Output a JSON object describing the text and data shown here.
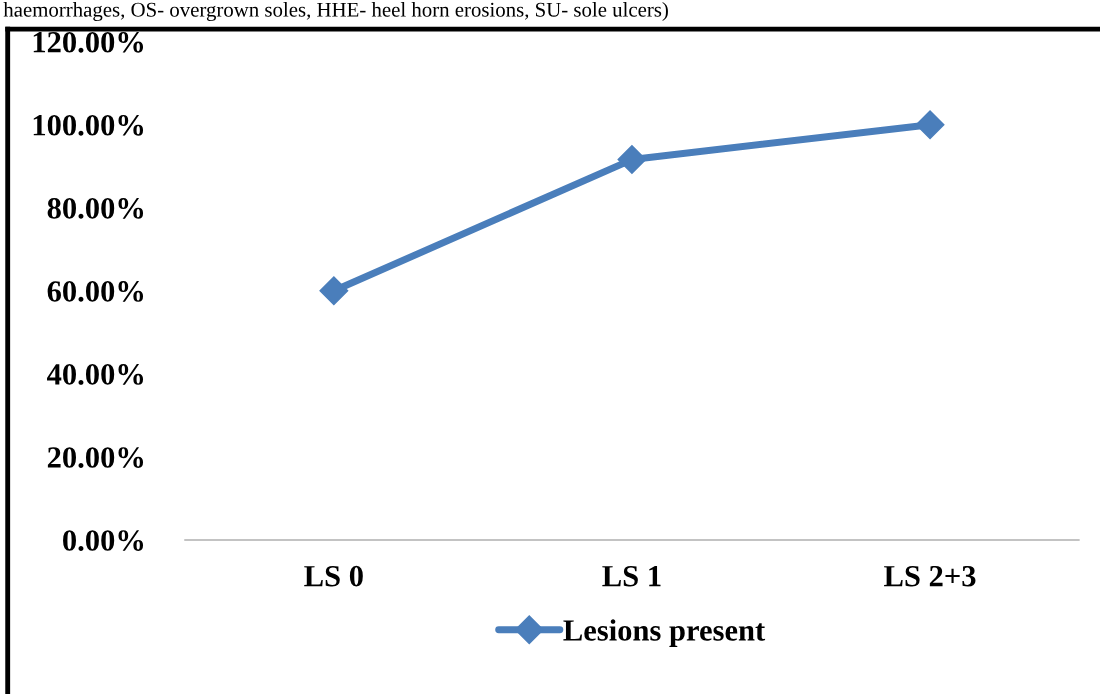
{
  "chart_data": {
    "type": "line",
    "annotations": [
      "haemorrhages, OS- overgrown soles, HHE- heel horn erosions, SU- sole ulcers)"
    ],
    "categories": [
      "LS 0",
      "LS 1",
      "LS 2+3"
    ],
    "series": [
      {
        "name": "Lesions present",
        "color": "#4a7ebb",
        "values": [
          60,
          91.6,
          100
        ]
      }
    ],
    "ylim": [
      0,
      120
    ],
    "yticks": [
      {
        "value": 0,
        "label": "0.00%"
      },
      {
        "value": 20,
        "label": "20.00%"
      },
      {
        "value": 40,
        "label": "40.00%"
      },
      {
        "value": 60,
        "label": "60.00%"
      },
      {
        "value": 80,
        "label": "80.00%"
      },
      {
        "value": 100,
        "label": "100.00%"
      },
      {
        "value": 120,
        "label": "120.00%"
      }
    ],
    "grid": false,
    "legend": "bottom",
    "marker": "diamond",
    "line_style": "solid"
  }
}
